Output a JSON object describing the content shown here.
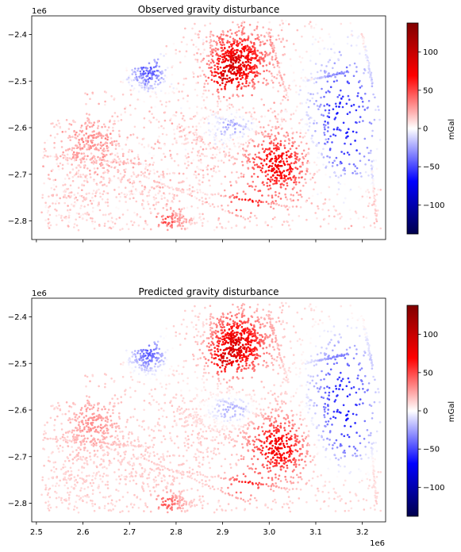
{
  "figure": {
    "panels": [
      {
        "title": "Observed gravity disturbance",
        "colorbar_label": "mGal",
        "y_offset_label": "1e6"
      },
      {
        "title": "Predicted gravity disturbance",
        "colorbar_label": "mGal",
        "y_offset_label": "1e6",
        "x_offset_label": "1e6"
      }
    ]
  },
  "chart_data": [
    {
      "type": "scatter",
      "title": "Observed gravity disturbance",
      "xlim": [
        2.49,
        3.25
      ],
      "ylim": [
        -2.84,
        -2.36
      ],
      "x_ticks": [],
      "y_ticks": [
        -2.4,
        -2.5,
        -2.6,
        -2.7,
        -2.8
      ],
      "y_tick_labels": [
        "−2.4",
        "−2.5",
        "−2.6",
        "−2.7",
        "−2.8"
      ],
      "x_offset": "",
      "y_offset": "1e6",
      "colormap": "seismic",
      "colorbar": {
        "label": "mGal",
        "vmin": -138,
        "vmax": 138,
        "ticks": [
          100,
          50,
          0,
          -50,
          -100
        ],
        "tick_labels": [
          "100",
          "50",
          "0",
          "−50",
          "−100"
        ]
      },
      "colors": {
        "low": "#00004c",
        "mid_low": "#0000ff",
        "mid": "#ffffff",
        "mid_high": "#ff0000",
        "high": "#800000"
      },
      "grid": false
    },
    {
      "type": "scatter",
      "title": "Predicted gravity disturbance",
      "xlim": [
        2.49,
        3.25
      ],
      "ylim": [
        -2.84,
        -2.36
      ],
      "x_ticks": [
        2.5,
        2.6,
        2.7,
        2.8,
        2.9,
        3.0,
        3.1,
        3.2
      ],
      "x_tick_labels": [
        "2.5",
        "2.6",
        "2.7",
        "2.8",
        "2.9",
        "3.0",
        "3.1",
        "3.2"
      ],
      "y_ticks": [
        -2.4,
        -2.5,
        -2.6,
        -2.7,
        -2.8
      ],
      "y_tick_labels": [
        "−2.4",
        "−2.5",
        "−2.6",
        "−2.7",
        "−2.8"
      ],
      "x_offset": "1e6",
      "y_offset": "1e6",
      "colormap": "seismic",
      "colorbar": {
        "label": "mGal",
        "vmin": -138,
        "vmax": 138,
        "ticks": [
          100,
          50,
          0,
          -50,
          -100
        ],
        "tick_labels": [
          "100",
          "50",
          "0",
          "−50",
          "−100"
        ]
      },
      "grid": false
    }
  ]
}
